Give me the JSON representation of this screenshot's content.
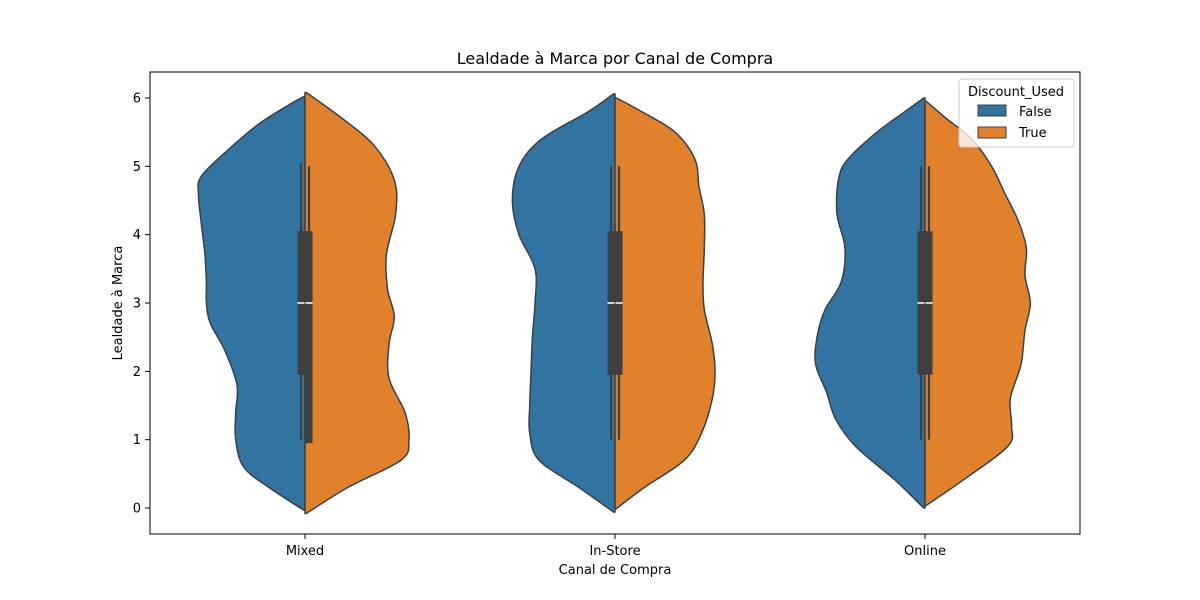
{
  "chart_data": {
    "type": "violin",
    "title": "Lealdade à Marca por Canal de Compra",
    "xlabel": "Canal de Compra",
    "ylabel": "Lealdade à Marca",
    "categories": [
      "Mixed",
      "In-Store",
      "Online"
    ],
    "yticks": [
      0,
      1,
      2,
      3,
      4,
      5,
      6
    ],
    "ylim": [
      -0.38,
      6.38
    ],
    "split": true,
    "legend": {
      "title": "Discount_Used",
      "location": "top-right",
      "entries": [
        {
          "label": "False",
          "color": "#3274a1"
        },
        {
          "label": "True",
          "color": "#e1812c"
        }
      ]
    },
    "series": [
      {
        "name": "False",
        "color": "#3274a1",
        "groups": [
          {
            "category": "Mixed",
            "min": -0.03,
            "max": 6.02,
            "profile": [
              [
                -0.03,
                0.01
              ],
              [
                0.3,
                0.27
              ],
              [
                0.6,
                0.46
              ],
              [
                1.0,
                0.52
              ],
              [
                1.4,
                0.52
              ],
              [
                1.8,
                0.51
              ],
              [
                2.3,
                0.6
              ],
              [
                2.7,
                0.71
              ],
              [
                3.0,
                0.74
              ],
              [
                3.3,
                0.74
              ],
              [
                3.7,
                0.75
              ],
              [
                4.2,
                0.78
              ],
              [
                4.6,
                0.8
              ],
              [
                4.85,
                0.78
              ],
              [
                5.2,
                0.6
              ],
              [
                5.6,
                0.36
              ],
              [
                5.9,
                0.12
              ],
              [
                6.02,
                0.01
              ]
            ],
            "box": {
              "q1": 1.95,
              "median": 3.0,
              "q3": 4.05,
              "whisker_low": 1.0,
              "whisker_high": 5.05
            }
          },
          {
            "category": "In-Store",
            "min": -0.06,
            "max": 6.06,
            "profile": [
              [
                -0.06,
                0.01
              ],
              [
                0.3,
                0.27
              ],
              [
                0.7,
                0.57
              ],
              [
                1.1,
                0.64
              ],
              [
                1.5,
                0.64
              ],
              [
                2.0,
                0.63
              ],
              [
                2.5,
                0.62
              ],
              [
                3.0,
                0.6
              ],
              [
                3.5,
                0.6
              ],
              [
                4.0,
                0.72
              ],
              [
                4.5,
                0.77
              ],
              [
                5.0,
                0.72
              ],
              [
                5.4,
                0.55
              ],
              [
                5.8,
                0.2
              ],
              [
                6.06,
                0.01
              ]
            ],
            "box": {
              "q1": 1.95,
              "median": 3.0,
              "q3": 4.05,
              "whisker_low": 1.0,
              "whisker_high": 5.0
            }
          },
          {
            "category": "Online",
            "min": 0.0,
            "max": 6.0,
            "profile": [
              [
                0.0,
                0.01
              ],
              [
                0.4,
                0.22
              ],
              [
                0.9,
                0.52
              ],
              [
                1.3,
                0.67
              ],
              [
                1.7,
                0.74
              ],
              [
                2.1,
                0.82
              ],
              [
                2.5,
                0.81
              ],
              [
                2.9,
                0.75
              ],
              [
                3.3,
                0.63
              ],
              [
                3.8,
                0.6
              ],
              [
                4.3,
                0.66
              ],
              [
                4.8,
                0.65
              ],
              [
                5.1,
                0.58
              ],
              [
                5.5,
                0.36
              ],
              [
                5.8,
                0.15
              ],
              [
                6.0,
                0.01
              ]
            ],
            "box": {
              "q1": 1.95,
              "median": 3.0,
              "q3": 4.05,
              "whisker_low": 1.0,
              "whisker_high": 5.0
            }
          }
        ]
      },
      {
        "name": "True",
        "color": "#e1812c",
        "groups": [
          {
            "category": "Mixed",
            "min": -0.08,
            "max": 6.08,
            "profile": [
              [
                -0.08,
                0.01
              ],
              [
                0.3,
                0.32
              ],
              [
                0.7,
                0.72
              ],
              [
                1.0,
                0.78
              ],
              [
                1.4,
                0.75
              ],
              [
                1.9,
                0.63
              ],
              [
                2.4,
                0.63
              ],
              [
                2.8,
                0.67
              ],
              [
                3.2,
                0.62
              ],
              [
                3.7,
                0.61
              ],
              [
                4.3,
                0.68
              ],
              [
                4.8,
                0.67
              ],
              [
                5.3,
                0.52
              ],
              [
                5.7,
                0.28
              ],
              [
                6.08,
                0.01
              ]
            ],
            "box": {
              "q1": 0.95,
              "median": 3.0,
              "q3": 4.05,
              "whisker_low": 0.95,
              "whisker_high": 5.0
            }
          },
          {
            "category": "In-Store",
            "min": -0.01,
            "max": 6.0,
            "profile": [
              [
                -0.01,
                0.01
              ],
              [
                0.3,
                0.22
              ],
              [
                0.7,
                0.52
              ],
              [
                1.1,
                0.65
              ],
              [
                1.6,
                0.73
              ],
              [
                2.0,
                0.75
              ],
              [
                2.4,
                0.73
              ],
              [
                2.9,
                0.67
              ],
              [
                3.3,
                0.66
              ],
              [
                3.8,
                0.67
              ],
              [
                4.3,
                0.67
              ],
              [
                4.7,
                0.63
              ],
              [
                5.1,
                0.6
              ],
              [
                5.5,
                0.45
              ],
              [
                5.8,
                0.2
              ],
              [
                6.0,
                0.01
              ]
            ],
            "box": {
              "q1": 1.95,
              "median": 3.0,
              "q3": 4.05,
              "whisker_low": 1.0,
              "whisker_high": 5.0
            }
          },
          {
            "category": "Online",
            "min": 0.04,
            "max": 5.95,
            "profile": [
              [
                0.04,
                0.01
              ],
              [
                0.4,
                0.28
              ],
              [
                0.9,
                0.62
              ],
              [
                1.2,
                0.65
              ],
              [
                1.6,
                0.64
              ],
              [
                2.1,
                0.72
              ],
              [
                2.6,
                0.75
              ],
              [
                3.0,
                0.79
              ],
              [
                3.4,
                0.75
              ],
              [
                3.8,
                0.76
              ],
              [
                4.2,
                0.7
              ],
              [
                4.6,
                0.6
              ],
              [
                5.0,
                0.5
              ],
              [
                5.4,
                0.35
              ],
              [
                5.7,
                0.16
              ],
              [
                5.95,
                0.01
              ]
            ],
            "box": {
              "q1": 1.95,
              "median": 3.0,
              "q3": 4.05,
              "whisker_low": 1.0,
              "whisker_high": 5.0
            }
          }
        ]
      }
    ]
  }
}
